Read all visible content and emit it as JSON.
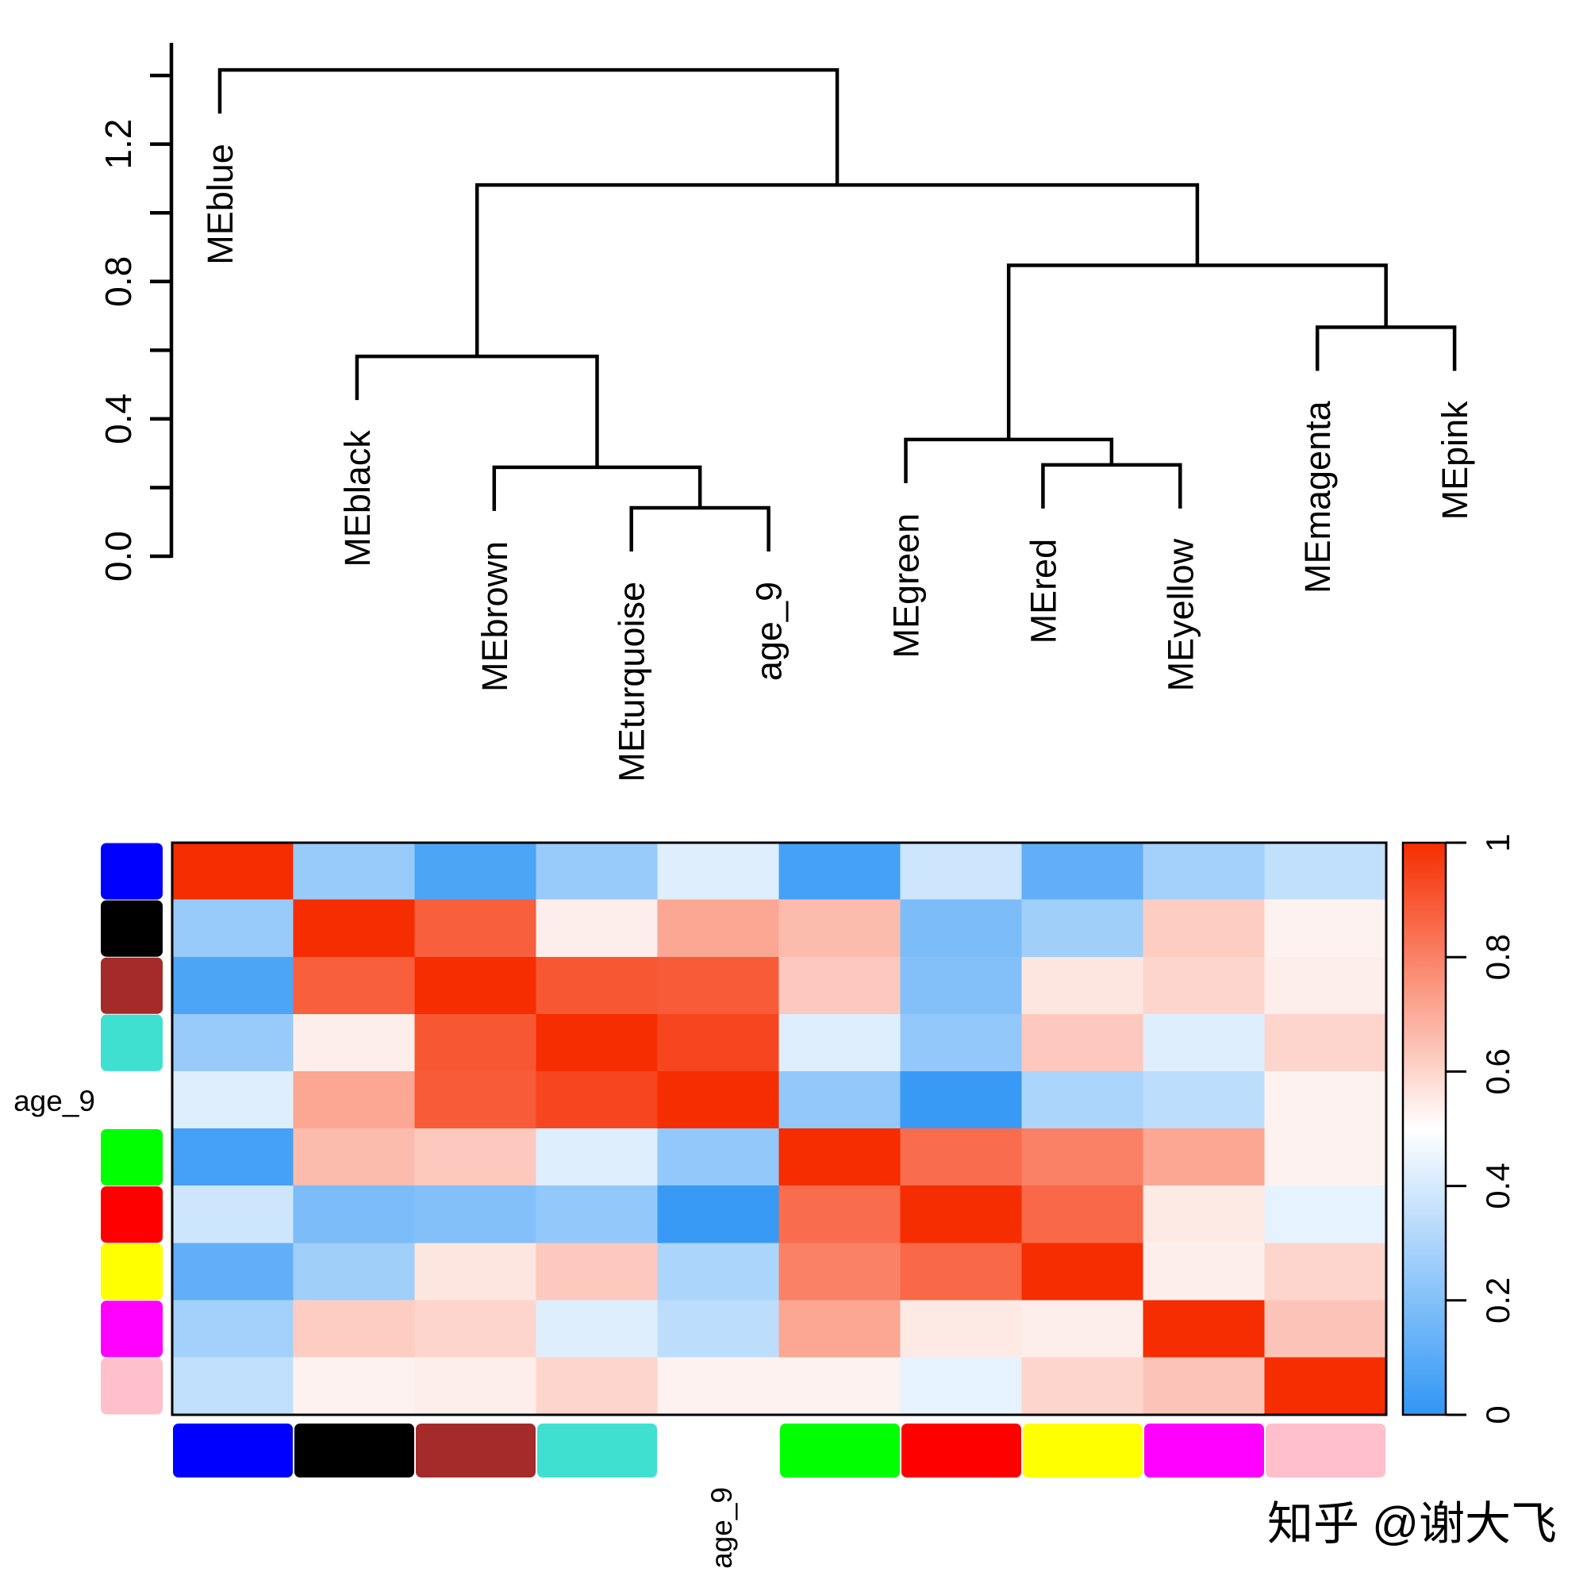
{
  "watermark": {
    "text": "知乎 @谢大飞",
    "color": "#c6c6c6"
  },
  "chart_data": [
    {
      "type": "dendrogram",
      "title": "",
      "orientation": "leaves-down",
      "leaves": [
        "MEblue",
        "MEblack",
        "MEbrown",
        "MEturquoise",
        "age_9",
        "MEgreen",
        "MEred",
        "MEyellow",
        "MEmagenta",
        "MEpink"
      ],
      "merges": [
        {
          "id": "M0",
          "a": "L3",
          "b": "L4",
          "height": 0.141
        },
        {
          "id": "M1",
          "a": "L2",
          "b": "M0",
          "height": 0.259
        },
        {
          "id": "M2",
          "a": "L1",
          "b": "M1",
          "height": 0.582
        },
        {
          "id": "M3",
          "a": "L6",
          "b": "L7",
          "height": 0.266
        },
        {
          "id": "M4",
          "a": "L5",
          "b": "M3",
          "height": 0.34
        },
        {
          "id": "M5",
          "a": "L8",
          "b": "L9",
          "height": 0.667
        },
        {
          "id": "M6",
          "a": "M4",
          "b": "M5",
          "height": 0.847
        },
        {
          "id": "M7",
          "a": "M2",
          "b": "M6",
          "height": 1.081
        },
        {
          "id": "M8",
          "a": "L0",
          "b": "M7",
          "height": 1.416
        }
      ],
      "y_axis": {
        "ticks": [
          0,
          0.2,
          0.4,
          0.6,
          0.8,
          1.0,
          1.2,
          1.4
        ],
        "tick_labels": [
          "0.0",
          "",
          "0.4",
          "",
          "0.8",
          "",
          "1.2",
          ""
        ],
        "range": [
          0,
          1.5
        ]
      }
    },
    {
      "type": "heatmap",
      "row_labels": [
        "MEblue",
        "MEblack",
        "MEbrown",
        "MEturquoise",
        "age_9",
        "MEgreen",
        "MEred",
        "MEyellow",
        "MEmagenta",
        "MEpink"
      ],
      "col_labels": [
        "MEblue",
        "MEblack",
        "MEbrown",
        "MEturquoise",
        "age_9",
        "MEgreen",
        "MEred",
        "MEyellow",
        "MEmagenta",
        "MEpink"
      ],
      "row_axis_annotation": "age_9",
      "col_axis_annotation": "age_9",
      "module_band_colors": [
        "#0000FF",
        "#000000",
        "#A52A2A",
        "#40E0D0",
        null,
        "#00FF00",
        "#FF0000",
        "#FFFF00",
        "#FF00FF",
        "#FFC0CB"
      ],
      "values": [
        [
          1.0,
          0.25,
          0.07,
          0.25,
          0.42,
          0.05,
          0.38,
          0.12,
          0.28,
          0.35
        ],
        [
          0.25,
          1.0,
          0.88,
          0.54,
          0.71,
          0.66,
          0.18,
          0.27,
          0.62,
          0.53
        ],
        [
          0.07,
          0.88,
          1.0,
          0.9,
          0.89,
          0.63,
          0.2,
          0.56,
          0.6,
          0.54
        ],
        [
          0.25,
          0.54,
          0.9,
          1.0,
          0.94,
          0.42,
          0.24,
          0.63,
          0.42,
          0.6
        ],
        [
          0.42,
          0.71,
          0.89,
          0.94,
          1.0,
          0.24,
          0.02,
          0.3,
          0.34,
          0.53
        ],
        [
          0.05,
          0.66,
          0.63,
          0.42,
          0.24,
          1.0,
          0.85,
          0.8,
          0.71,
          0.53
        ],
        [
          0.38,
          0.18,
          0.2,
          0.24,
          0.02,
          0.85,
          1.0,
          0.86,
          0.55,
          0.44
        ],
        [
          0.12,
          0.27,
          0.56,
          0.63,
          0.3,
          0.8,
          0.86,
          1.0,
          0.54,
          0.6
        ],
        [
          0.28,
          0.62,
          0.6,
          0.42,
          0.34,
          0.71,
          0.55,
          0.54,
          1.0,
          0.64
        ],
        [
          0.35,
          0.53,
          0.54,
          0.6,
          0.53,
          0.53,
          0.44,
          0.6,
          0.64,
          1.0
        ]
      ],
      "colorbar": {
        "min": 0,
        "max": 1,
        "tick_labels": [
          "0",
          "0.2",
          "0.4",
          "0.6",
          "0.8",
          "1"
        ],
        "low_color": "#3096F5",
        "mid_color": "#FFFFFF",
        "high_color": "#F62D00"
      }
    }
  ]
}
